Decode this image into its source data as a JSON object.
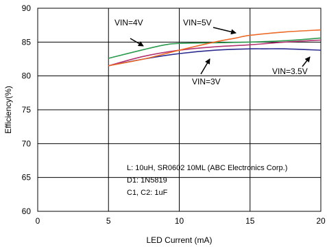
{
  "chart_data": {
    "type": "line",
    "title": "",
    "xlabel": "LED Current (mA)",
    "ylabel": "Efficiency(%)",
    "xlim": [
      0,
      20
    ],
    "ylim": [
      60,
      90
    ],
    "xticks": [
      0,
      5,
      10,
      15,
      20
    ],
    "yticks": [
      60,
      65,
      70,
      75,
      80,
      85,
      90
    ],
    "grid": true,
    "series": [
      {
        "name": "VIN=3V",
        "color": "#2b2b8f",
        "x": [
          5,
          7.5,
          10,
          12.5,
          15,
          16,
          17.5,
          20
        ],
        "y": [
          81.5,
          82.5,
          83.3,
          83.8,
          84.0,
          84.0,
          84.0,
          83.8
        ]
      },
      {
        "name": "VIN=3.5V",
        "color": "#b03070",
        "x": [
          5,
          7.5,
          10,
          12.5,
          15,
          17.5,
          20
        ],
        "y": [
          81.5,
          82.9,
          83.8,
          84.3,
          84.6,
          85.0,
          85.3
        ]
      },
      {
        "name": "VIN=4V",
        "color": "#2b9a4e",
        "x": [
          5,
          7.5,
          9,
          10,
          12.5,
          15,
          17.5,
          20
        ],
        "y": [
          82.6,
          83.9,
          84.6,
          84.8,
          84.9,
          85.0,
          85.2,
          85.6
        ]
      },
      {
        "name": "VIN=5V",
        "color": "#ec6a28",
        "x": [
          5,
          7.5,
          10,
          12.5,
          14,
          15,
          17.5,
          20
        ],
        "y": [
          81.5,
          82.5,
          83.8,
          85.0,
          85.6,
          86.0,
          86.5,
          86.8
        ]
      }
    ],
    "annotations": [
      {
        "text": "VIN=4V",
        "series": "VIN=4V"
      },
      {
        "text": "VIN=5V",
        "series": "VIN=5V"
      },
      {
        "text": "VIN=3V",
        "series": "VIN=3V"
      },
      {
        "text": "VIN=3.5V",
        "series": "VIN=3.5V"
      }
    ],
    "notes": [
      "L: 10uH, SR0602 10ML (ABC Electronics Corp.)",
      "D1: 1N5819",
      "C1, C2: 1uF"
    ]
  }
}
